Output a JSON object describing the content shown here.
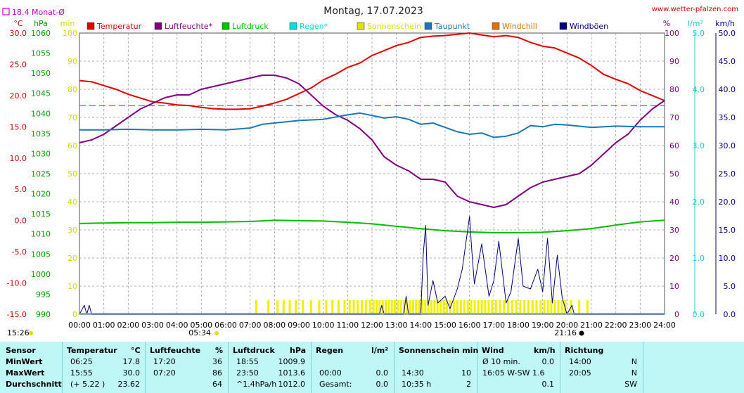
{
  "header": {
    "title": "Montag, 17.07.2023",
    "website": "www.wetter-pfalzen.com",
    "month_avg": "18.4 Monat-Ø",
    "time_label": "15:26",
    "sunrise_label": "05:34",
    "sunset_label": "21:16"
  },
  "axis_units": {
    "temp": "°C",
    "pressure": "hPa",
    "sun": "min",
    "percent": "%",
    "rain": "l/m²",
    "wind": "km/h"
  },
  "legend": [
    {
      "label": "Temperatur",
      "color": "#e00000"
    },
    {
      "label": "Luftfeuchte*",
      "color": "#800080"
    },
    {
      "label": "Luftdruck",
      "color": "#00c000"
    },
    {
      "label": "Regen*",
      "color": "#00e0e0"
    },
    {
      "label": "Sonnenschein",
      "color": "#e0e000"
    },
    {
      "label": "Taupunkt",
      "color": "#1878b8"
    },
    {
      "label": "Windchill",
      "color": "#e07000"
    },
    {
      "label": "Windböen",
      "color": "#000080"
    }
  ],
  "chart_data": {
    "type": "line",
    "title": "Montag, 17.07.2023",
    "x_ticks": [
      "00:00",
      "01:00",
      "02:00",
      "03:00",
      "04:00",
      "05:00",
      "06:00",
      "07:00",
      "08:00",
      "09:00",
      "10:00",
      "11:00",
      "12:00",
      "13:00",
      "14:00",
      "15:00",
      "16:00",
      "17:00",
      "18:00",
      "19:00",
      "20:00",
      "21:00",
      "22:00",
      "23:00",
      "24:00"
    ],
    "axes": {
      "temp": {
        "unit": "°C",
        "range": [
          -15,
          30
        ],
        "ticks": [
          "30.0",
          "25.0",
          "20.0",
          "15.0",
          "10.0",
          "5.0",
          "0.0",
          "-5.0",
          "-10.0",
          "-15.0"
        ]
      },
      "pressure": {
        "unit": "hPa",
        "range": [
          990,
          1060
        ],
        "ticks": [
          "1060",
          "1055",
          "1050",
          "1045",
          "1040",
          "1035",
          "1030",
          "1025",
          "1020",
          "1015",
          "1010",
          "1005",
          "1000",
          "995",
          "990"
        ]
      },
      "sun": {
        "unit": "min",
        "range": [
          0,
          100
        ],
        "ticks": [
          "100",
          "90",
          "80",
          "70",
          "60",
          "50",
          "40",
          "30",
          "20",
          "10",
          "0"
        ]
      },
      "humidity": {
        "unit": "%",
        "range": [
          0,
          100
        ],
        "ticks": [
          "100",
          "90",
          "80",
          "70",
          "60",
          "50",
          "40",
          "30",
          "20",
          "10",
          "0"
        ]
      },
      "rain": {
        "unit": "l/m²",
        "range": [
          0,
          5
        ],
        "ticks": [
          "5.0",
          "4.0",
          "3.0",
          "2.0",
          "1.0",
          "0.0"
        ]
      },
      "wind": {
        "unit": "km/h",
        "range": [
          0,
          50
        ],
        "ticks": [
          "50.0",
          "45.0",
          "40.0",
          "35.0",
          "30.0",
          "25.0",
          "20.0",
          "15.0",
          "10.0",
          "5.0",
          "0.0"
        ]
      }
    },
    "grid": true,
    "month_avg_temp": 18.4,
    "series": [
      {
        "name": "Temperatur",
        "unit": "°C",
        "x": [
          0,
          0.5,
          1,
          1.5,
          2,
          2.5,
          3,
          3.5,
          4,
          4.5,
          5,
          5.5,
          6,
          6.5,
          7,
          7.5,
          8,
          8.5,
          9,
          9.5,
          10,
          10.5,
          11,
          11.5,
          12,
          12.5,
          13,
          13.5,
          14,
          14.5,
          15,
          15.5,
          16,
          16.5,
          17,
          17.5,
          18,
          18.5,
          19,
          19.5,
          20,
          20.5,
          21,
          21.5,
          22,
          22.5,
          23,
          23.5,
          24
        ],
        "y": [
          22.4,
          22.2,
          21.6,
          21.0,
          20.2,
          19.6,
          19.0,
          18.8,
          18.5,
          18.4,
          18.1,
          17.9,
          17.8,
          17.8,
          17.9,
          18.3,
          18.8,
          19.4,
          20.3,
          21.2,
          22.5,
          23.4,
          24.5,
          25.2,
          26.4,
          27.2,
          28.0,
          28.5,
          29.3,
          29.5,
          29.6,
          29.8,
          30.0,
          29.7,
          29.4,
          29.6,
          29.3,
          28.5,
          27.9,
          27.6,
          26.8,
          26.0,
          24.8,
          23.4,
          22.6,
          21.9,
          20.8,
          20.0,
          19.2
        ]
      },
      {
        "name": "Luftfeuchte*",
        "unit": "%",
        "x": [
          0,
          0.5,
          1,
          1.5,
          2,
          2.5,
          3,
          3.5,
          4,
          4.5,
          5,
          5.5,
          6,
          6.5,
          7,
          7.5,
          8,
          8.5,
          9,
          9.5,
          10,
          10.5,
          11,
          11.5,
          12,
          12.5,
          13,
          13.5,
          14,
          14.5,
          15,
          15.5,
          16,
          16.5,
          17,
          17.5,
          18,
          18.5,
          19,
          19.5,
          20,
          20.5,
          21,
          21.5,
          22,
          22.5,
          23,
          23.5,
          24
        ],
        "y": [
          61,
          62,
          64,
          67,
          70,
          73,
          75,
          77,
          78,
          78,
          80,
          81,
          82,
          83,
          84,
          85,
          85,
          84,
          82,
          78,
          74,
          71,
          69,
          66,
          62,
          56,
          53,
          51,
          48,
          48,
          47,
          42,
          40,
          39,
          38,
          39,
          42,
          45,
          47,
          48,
          49,
          50,
          53,
          57,
          61,
          64,
          69,
          73,
          76
        ]
      },
      {
        "name": "Luftdruck",
        "unit": "hPa",
        "x": [
          0,
          1,
          2,
          3,
          4,
          5,
          6,
          7,
          8,
          9,
          10,
          11,
          12,
          13,
          14,
          15,
          16,
          17,
          18,
          19,
          20,
          21,
          22,
          23,
          24
        ],
        "y": [
          1012.6,
          1012.7,
          1012.8,
          1012.8,
          1012.9,
          1012.9,
          1013.0,
          1013.1,
          1013.4,
          1013.3,
          1013.2,
          1012.9,
          1012.5,
          1011.9,
          1011.3,
          1010.8,
          1010.5,
          1010.3,
          1010.3,
          1010.4,
          1010.8,
          1011.3,
          1012.2,
          1013.0,
          1013.4
        ]
      },
      {
        "name": "Taupunkt",
        "unit": "°C",
        "x": [
          0,
          1,
          2,
          3,
          4,
          5,
          6,
          7,
          7.5,
          8,
          9,
          10,
          11,
          11.5,
          12,
          12.5,
          13,
          13.5,
          14,
          14.5,
          15,
          15.5,
          16,
          16.5,
          17,
          17.5,
          18,
          18.5,
          19,
          19.5,
          20,
          21,
          22,
          23,
          24
        ],
        "y": [
          14.5,
          14.5,
          14.6,
          14.5,
          14.5,
          14.6,
          14.5,
          14.8,
          15.4,
          15.6,
          16.0,
          16.2,
          16.9,
          17.2,
          16.8,
          16.4,
          16.6,
          16.2,
          15.4,
          15.6,
          14.9,
          14.2,
          13.8,
          14.0,
          13.3,
          13.5,
          14.0,
          15.2,
          15.0,
          15.4,
          15.3,
          14.9,
          15.1,
          15.0,
          15.0
        ]
      },
      {
        "name": "Windböen",
        "unit": "km/h",
        "x": [
          0,
          0.2,
          0.3,
          0.4,
          0.5,
          12.3,
          12.4,
          12.5,
          13.3,
          13.4,
          13.5,
          14.0,
          14.1,
          14.2,
          14.3,
          14.5,
          14.7,
          15.0,
          15.2,
          15.5,
          15.7,
          16.0,
          16.1,
          16.2,
          16.5,
          16.8,
          17.0,
          17.2,
          17.5,
          17.7,
          18.0,
          18.2,
          18.5,
          18.8,
          19.0,
          19.2,
          19.4,
          19.6,
          19.8,
          20.0,
          20.2,
          20.3,
          20.6,
          24
        ],
        "y": [
          0,
          1.6,
          0,
          1.6,
          0,
          0,
          1.6,
          0,
          0,
          3.2,
          0,
          0,
          10.5,
          15.8,
          1.6,
          6,
          2,
          3.2,
          1,
          4.5,
          8,
          17.4,
          11,
          5.4,
          12.5,
          3.2,
          6,
          13,
          2,
          4,
          13.5,
          5,
          4.5,
          8,
          4,
          13.5,
          2,
          10.5,
          3,
          0,
          1.6,
          0,
          0,
          0
        ]
      }
    ],
    "sunshine_min": {
      "unit": "min",
      "hourly": [
        0,
        0,
        0,
        0,
        0,
        0,
        0,
        1,
        3,
        2,
        3,
        5,
        7,
        7,
        7,
        6,
        6,
        5,
        5,
        6,
        2,
        0,
        0,
        0
      ]
    },
    "rain_l_m2": {
      "total": 0.0
    }
  },
  "stats": {
    "headers": {
      "sensor": "Sensor",
      "temp": "Temperatur",
      "temp_unit": "°C",
      "hum": "Luftfeuchte",
      "hum_unit": "%",
      "press": "Luftdruck",
      "press_unit": "hPa",
      "rain": "Regen",
      "rain_unit": "l/m²",
      "sun": "Sonnenschein min",
      "wind": "Wind",
      "wind_unit": "km/h",
      "dir": "Richtung"
    },
    "rows": [
      {
        "label": "MinWert",
        "temp_time": "06:25",
        "temp_val": "17.8",
        "hum_time": "17:20",
        "hum_val": "36",
        "press_time": "18:55",
        "press_val": "1009.9",
        "rain_time": "",
        "rain_val": "",
        "sun_time": "",
        "sun_val": "",
        "wind_time": "Ø 10 min.",
        "wind_val": "0.0",
        "dir_time": "14:00",
        "dir_val": "N"
      },
      {
        "label": "MaxWert",
        "temp_time": "15:55",
        "temp_val": "30.0",
        "hum_time": "07:20",
        "hum_val": "86",
        "press_time": "23:50",
        "press_val": "1013.6",
        "rain_time": "00:00",
        "rain_val": "0.0",
        "sun_time": "14:30",
        "sun_val": "10",
        "wind_time": "16:05    W-SW 1.6",
        "wind_val": "",
        "dir_time": "20:05",
        "dir_val": "N"
      },
      {
        "label": "Durchschnitt",
        "temp_time": "(+ 5.22 )",
        "temp_val": "23.62",
        "hum_time": "",
        "hum_val": "64",
        "press_time": "^1.4hPa/h",
        "press_val": "1012.0",
        "rain_time": "Gesamt:",
        "rain_val": "0.0",
        "sun_time": "10:35 h",
        "sun_val": "2",
        "wind_time": "",
        "wind_val": "0.1",
        "dir_time": "",
        "dir_val": "SW"
      }
    ]
  }
}
